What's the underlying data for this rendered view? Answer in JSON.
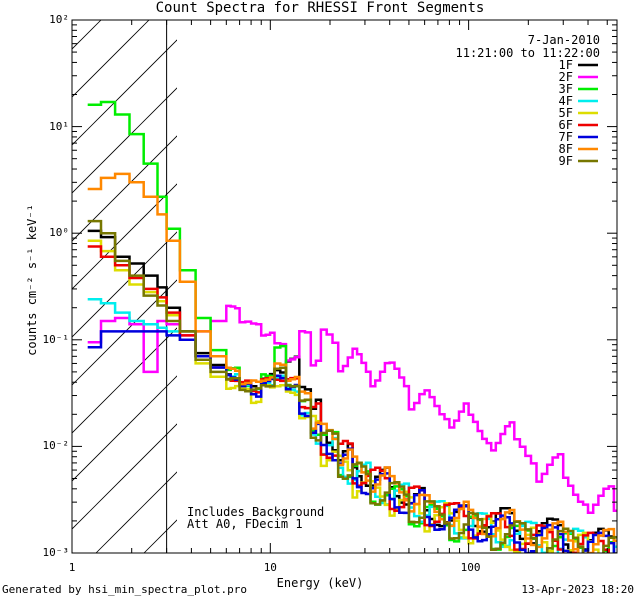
{
  "chart_data": {
    "type": "line",
    "title": "Count Spectra for RHESSI Front Segments",
    "xlabel": "Energy (keV)",
    "ylabel": "counts cm⁻² s⁻¹ keV⁻¹",
    "xscale": "log",
    "yscale": "log",
    "xlim": [
      1,
      560
    ],
    "ylim": [
      0.001,
      100
    ],
    "x_ticks": [
      "1",
      "10",
      "100"
    ],
    "y_ticks": [
      "10⁻³",
      "10⁻²",
      "10⁻¹",
      "10⁰",
      "10¹",
      "10²"
    ],
    "excluded_region_below_keV": 3,
    "date": "7-Jan-2010",
    "time_range": "11:21:00 to 11:22:00",
    "notes": [
      "Includes Background",
      "Att A0, FDecim 1"
    ],
    "legend_position": "top-right",
    "series": [
      {
        "name": "1F",
        "color": "#000000",
        "values": [
          [
            1.2,
            1.05
          ],
          [
            1.4,
            0.92
          ],
          [
            1.65,
            0.6
          ],
          [
            1.95,
            0.52
          ],
          [
            2.3,
            0.4
          ],
          [
            2.7,
            0.31
          ],
          [
            3.0,
            0.2
          ],
          [
            3.5,
            0.12
          ],
          [
            4.2,
            0.075
          ],
          [
            5.0,
            0.058
          ],
          [
            6.0,
            0.045
          ],
          [
            7.0,
            0.04
          ],
          [
            8.0,
            0.035
          ],
          [
            9.0,
            0.045
          ],
          [
            10.5,
            0.05
          ],
          [
            12,
            0.065
          ],
          [
            14,
            0.035
          ],
          [
            16,
            0.025
          ],
          [
            18,
            0.012
          ],
          [
            22,
            0.008
          ],
          [
            26,
            0.006
          ],
          [
            32,
            0.0045
          ],
          [
            40,
            0.004
          ],
          [
            50,
            0.003
          ],
          [
            60,
            0.0025
          ],
          [
            80,
            0.002
          ],
          [
            100,
            0.0022
          ],
          [
            130,
            0.0019
          ],
          [
            170,
            0.0017
          ],
          [
            220,
            0.0015
          ],
          [
            300,
            0.0013
          ],
          [
            400,
            0.0012
          ],
          [
            540,
            0.0011
          ]
        ]
      },
      {
        "name": "2F",
        "color": "#ff00ff",
        "values": [
          [
            1.2,
            0.095
          ],
          [
            1.4,
            0.15
          ],
          [
            1.65,
            0.16
          ],
          [
            1.95,
            0.14
          ],
          [
            2.3,
            0.05
          ],
          [
            2.7,
            0.15
          ],
          [
            3.0,
            0.14
          ],
          [
            3.5,
            0.11
          ],
          [
            4.2,
            0.12
          ],
          [
            5.0,
            0.15
          ],
          [
            6.0,
            0.19
          ],
          [
            7.0,
            0.16
          ],
          [
            8.0,
            0.13
          ],
          [
            9.0,
            0.12
          ],
          [
            10.5,
            0.085
          ],
          [
            12,
            0.07
          ],
          [
            14,
            0.11
          ],
          [
            16,
            0.08
          ],
          [
            18,
            0.09
          ],
          [
            22,
            0.07
          ],
          [
            26,
            0.06
          ],
          [
            32,
            0.05
          ],
          [
            40,
            0.045
          ],
          [
            50,
            0.03
          ],
          [
            60,
            0.025
          ],
          [
            80,
            0.02
          ],
          [
            100,
            0.015
          ],
          [
            130,
            0.012
          ],
          [
            170,
            0.009
          ],
          [
            220,
            0.006
          ],
          [
            300,
            0.004
          ],
          [
            400,
            0.003
          ],
          [
            540,
            0.002
          ]
        ]
      },
      {
        "name": "3F",
        "color": "#00ee00",
        "values": [
          [
            1.2,
            16.0
          ],
          [
            1.4,
            17.0
          ],
          [
            1.65,
            13.0
          ],
          [
            1.95,
            8.5
          ],
          [
            2.3,
            4.5
          ],
          [
            2.7,
            2.2
          ],
          [
            3.0,
            1.1
          ],
          [
            3.5,
            0.45
          ],
          [
            4.2,
            0.16
          ],
          [
            5.0,
            0.08
          ],
          [
            6.0,
            0.05
          ],
          [
            7.0,
            0.04
          ],
          [
            8.0,
            0.032
          ],
          [
            9.0,
            0.05
          ],
          [
            10.5,
            0.08
          ],
          [
            12,
            0.04
          ],
          [
            14,
            0.025
          ],
          [
            16,
            0.018
          ],
          [
            18,
            0.01
          ],
          [
            22,
            0.007
          ],
          [
            26,
            0.005
          ],
          [
            32,
            0.004
          ],
          [
            40,
            0.003
          ],
          [
            50,
            0.0025
          ],
          [
            60,
            0.002
          ],
          [
            80,
            0.0018
          ],
          [
            100,
            0.0016
          ],
          [
            130,
            0.0015
          ],
          [
            170,
            0.0013
          ],
          [
            220,
            0.0012
          ],
          [
            300,
            0.0011
          ],
          [
            400,
            0.00105
          ],
          [
            540,
            0.001
          ]
        ]
      },
      {
        "name": "4F",
        "color": "#00eeee",
        "values": [
          [
            1.2,
            0.24
          ],
          [
            1.4,
            0.22
          ],
          [
            1.65,
            0.18
          ],
          [
            1.95,
            0.15
          ],
          [
            2.3,
            0.14
          ],
          [
            2.7,
            0.13
          ],
          [
            3.0,
            0.12
          ],
          [
            3.5,
            0.1
          ],
          [
            4.2,
            0.07
          ],
          [
            5.0,
            0.055
          ],
          [
            6.0,
            0.045
          ],
          [
            7.0,
            0.038
          ],
          [
            8.0,
            0.032
          ],
          [
            9.0,
            0.04
          ],
          [
            10.5,
            0.045
          ],
          [
            12,
            0.035
          ],
          [
            14,
            0.02
          ],
          [
            16,
            0.012
          ],
          [
            18,
            0.009
          ],
          [
            22,
            0.006
          ],
          [
            26,
            0.005
          ],
          [
            32,
            0.004
          ],
          [
            40,
            0.0032
          ],
          [
            50,
            0.0027
          ],
          [
            60,
            0.0022
          ],
          [
            80,
            0.0019
          ],
          [
            100,
            0.0017
          ],
          [
            130,
            0.0016
          ],
          [
            170,
            0.0014
          ],
          [
            220,
            0.0013
          ],
          [
            300,
            0.0012
          ],
          [
            400,
            0.0011
          ],
          [
            540,
            0.001
          ]
        ]
      },
      {
        "name": "5F",
        "color": "#dddd00",
        "values": [
          [
            1.2,
            0.85
          ],
          [
            1.4,
            0.68
          ],
          [
            1.65,
            0.45
          ],
          [
            1.95,
            0.33
          ],
          [
            2.3,
            0.28
          ],
          [
            2.7,
            0.23
          ],
          [
            3.0,
            0.17
          ],
          [
            3.5,
            0.1
          ],
          [
            4.2,
            0.06
          ],
          [
            5.0,
            0.045
          ],
          [
            6.0,
            0.038
          ],
          [
            7.0,
            0.032
          ],
          [
            8.0,
            0.028
          ],
          [
            9.0,
            0.035
          ],
          [
            10.5,
            0.04
          ],
          [
            12,
            0.03
          ],
          [
            14,
            0.02
          ],
          [
            16,
            0.014
          ],
          [
            18,
            0.009
          ],
          [
            22,
            0.006
          ],
          [
            26,
            0.0045
          ],
          [
            32,
            0.0035
          ],
          [
            40,
            0.003
          ],
          [
            50,
            0.0025
          ],
          [
            60,
            0.0021
          ],
          [
            80,
            0.0018
          ],
          [
            100,
            0.0016
          ],
          [
            130,
            0.0015
          ],
          [
            170,
            0.0013
          ],
          [
            220,
            0.0012
          ],
          [
            300,
            0.0011
          ],
          [
            400,
            0.00105
          ],
          [
            540,
            0.001
          ]
        ]
      },
      {
        "name": "6F",
        "color": "#ee0000",
        "values": [
          [
            1.2,
            0.75
          ],
          [
            1.4,
            0.6
          ],
          [
            1.65,
            0.5
          ],
          [
            1.95,
            0.38
          ],
          [
            2.3,
            0.3
          ],
          [
            2.7,
            0.25
          ],
          [
            3.0,
            0.18
          ],
          [
            3.5,
            0.11
          ],
          [
            4.2,
            0.07
          ],
          [
            5.0,
            0.055
          ],
          [
            6.0,
            0.045
          ],
          [
            7.0,
            0.038
          ],
          [
            8.0,
            0.035
          ],
          [
            9.0,
            0.04
          ],
          [
            10.5,
            0.045
          ],
          [
            12,
            0.04
          ],
          [
            14,
            0.025
          ],
          [
            16,
            0.018
          ],
          [
            18,
            0.011
          ],
          [
            22,
            0.008
          ],
          [
            26,
            0.006
          ],
          [
            32,
            0.0045
          ],
          [
            40,
            0.0035
          ],
          [
            50,
            0.003
          ],
          [
            60,
            0.0025
          ],
          [
            80,
            0.0021
          ],
          [
            100,
            0.0019
          ],
          [
            130,
            0.0017
          ],
          [
            170,
            0.0015
          ],
          [
            220,
            0.0013
          ],
          [
            300,
            0.0012
          ],
          [
            400,
            0.0011
          ],
          [
            540,
            0.001
          ]
        ]
      },
      {
        "name": "7F",
        "color": "#0000dd",
        "values": [
          [
            1.2,
            0.085
          ],
          [
            1.4,
            0.12
          ],
          [
            1.65,
            0.12
          ],
          [
            1.95,
            0.12
          ],
          [
            2.3,
            0.12
          ],
          [
            2.7,
            0.12
          ],
          [
            3.0,
            0.11
          ],
          [
            3.5,
            0.1
          ],
          [
            4.2,
            0.07
          ],
          [
            5.0,
            0.055
          ],
          [
            6.0,
            0.045
          ],
          [
            7.0,
            0.038
          ],
          [
            8.0,
            0.03
          ],
          [
            9.0,
            0.04
          ],
          [
            10.5,
            0.045
          ],
          [
            12,
            0.035
          ],
          [
            14,
            0.02
          ],
          [
            16,
            0.014
          ],
          [
            18,
            0.01
          ],
          [
            22,
            0.007
          ],
          [
            26,
            0.005
          ],
          [
            32,
            0.004
          ],
          [
            40,
            0.0033
          ],
          [
            50,
            0.0028
          ],
          [
            60,
            0.0023
          ],
          [
            80,
            0.002
          ],
          [
            100,
            0.0018
          ],
          [
            130,
            0.0016
          ],
          [
            170,
            0.0014
          ],
          [
            220,
            0.0013
          ],
          [
            300,
            0.0012
          ],
          [
            400,
            0.0011
          ],
          [
            540,
            0.001
          ]
        ]
      },
      {
        "name": "8F",
        "color": "#ff8800",
        "values": [
          [
            1.2,
            2.6
          ],
          [
            1.4,
            3.3
          ],
          [
            1.65,
            3.6
          ],
          [
            1.95,
            3.0
          ],
          [
            2.3,
            2.2
          ],
          [
            2.7,
            1.5
          ],
          [
            3.0,
            0.85
          ],
          [
            3.5,
            0.35
          ],
          [
            4.2,
            0.12
          ],
          [
            5.0,
            0.07
          ],
          [
            6.0,
            0.05
          ],
          [
            7.0,
            0.042
          ],
          [
            8.0,
            0.038
          ],
          [
            9.0,
            0.045
          ],
          [
            10.5,
            0.055
          ],
          [
            12,
            0.045
          ],
          [
            14,
            0.03
          ],
          [
            16,
            0.02
          ],
          [
            18,
            0.012
          ],
          [
            22,
            0.009
          ],
          [
            26,
            0.006
          ],
          [
            32,
            0.005
          ],
          [
            40,
            0.004
          ],
          [
            50,
            0.0032
          ],
          [
            60,
            0.0027
          ],
          [
            80,
            0.0023
          ],
          [
            100,
            0.002
          ],
          [
            130,
            0.0018
          ],
          [
            170,
            0.0016
          ],
          [
            220,
            0.0014
          ],
          [
            300,
            0.0013
          ],
          [
            400,
            0.0012
          ],
          [
            540,
            0.0011
          ]
        ]
      },
      {
        "name": "9F",
        "color": "#777700",
        "values": [
          [
            1.2,
            1.3
          ],
          [
            1.4,
            1.0
          ],
          [
            1.65,
            0.55
          ],
          [
            1.95,
            0.4
          ],
          [
            2.3,
            0.26
          ],
          [
            2.7,
            0.21
          ],
          [
            3.0,
            0.15
          ],
          [
            3.5,
            0.12
          ],
          [
            4.2,
            0.065
          ],
          [
            5.0,
            0.05
          ],
          [
            6.0,
            0.04
          ],
          [
            7.0,
            0.036
          ],
          [
            8.0,
            0.032
          ],
          [
            9.0,
            0.04
          ],
          [
            10.5,
            0.05
          ],
          [
            12,
            0.04
          ],
          [
            14,
            0.025
          ],
          [
            16,
            0.016
          ],
          [
            18,
            0.01
          ],
          [
            22,
            0.007
          ],
          [
            26,
            0.005
          ],
          [
            32,
            0.004
          ],
          [
            40,
            0.0033
          ],
          [
            50,
            0.0027
          ],
          [
            60,
            0.0022
          ],
          [
            80,
            0.0019
          ],
          [
            100,
            0.0017
          ],
          [
            130,
            0.0015
          ],
          [
            170,
            0.0014
          ],
          [
            220,
            0.0013
          ],
          [
            300,
            0.0012
          ],
          [
            400,
            0.0011
          ],
          [
            540,
            0.001
          ]
        ]
      }
    ]
  },
  "footer": {
    "generated_by": "Generated by hsi_min_spectra_plot.pro",
    "date": "13-Apr-2023 18:20"
  }
}
